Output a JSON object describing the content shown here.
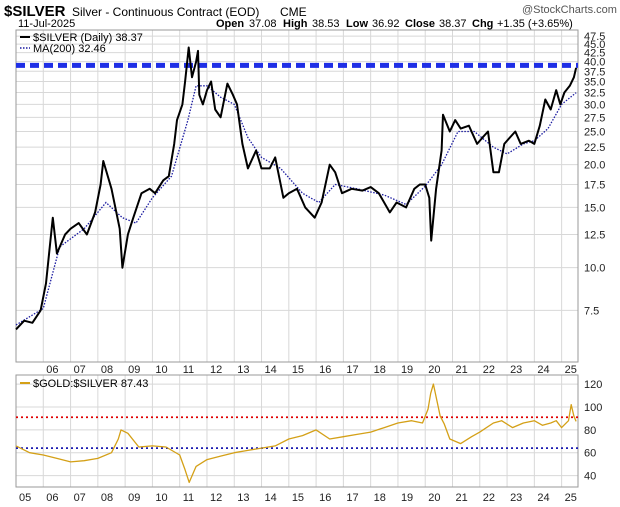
{
  "header": {
    "symbol": "$SILVER",
    "description": "Silver - Continuous Contract (EOD)",
    "exchange": "CME",
    "date": "11-Jul-2025",
    "open_label": "Open",
    "open": "37.08",
    "high_label": "High",
    "high": "38.53",
    "low_label": "Low",
    "low": "36.92",
    "close_label": "Close",
    "close": "38.37",
    "chg_label": "Chg",
    "chg": "+1.35 (+3.65%)",
    "watermark": "@StockCharts.com"
  },
  "colors": {
    "price": "#000000",
    "ma": "#1a1aa0",
    "resistance": "#1f2fe6",
    "ratio": "#d4a017",
    "upper": "#e00000",
    "lower": "#1a1ab0",
    "grid": "#d8d8d8",
    "panel_border": "#9a9a9a"
  },
  "chart_data": [
    {
      "type": "line",
      "title": "$SILVER Silver - Continuous Contract (EOD) CME",
      "legend": [
        {
          "label": "$SILVER (Daily) 38.37",
          "style": "solid"
        },
        {
          "label": "MA(200) 32.46",
          "style": "dotted"
        }
      ],
      "x_ticks": [
        "06",
        "07",
        "08",
        "09",
        "10",
        "11",
        "12",
        "13",
        "14",
        "15",
        "16",
        "17",
        "18",
        "19",
        "20",
        "21",
        "22",
        "23",
        "24",
        "25"
      ],
      "y_ticks": [
        "7.5",
        "10.0",
        "12.5",
        "15.0",
        "17.5",
        "20.0",
        "22.5",
        "25.0",
        "27.5",
        "30.0",
        "32.5",
        "35.0",
        "37.5",
        "40.0",
        "42.5",
        "45.0",
        "47.5"
      ],
      "ylim": [
        5.3,
        49.5
      ],
      "xlim": [
        2005.0,
        2025.6
      ],
      "y_scale": "log",
      "grid": true,
      "horizontal_line": 39.0,
      "series": [
        {
          "name": "$SILVER (Daily)",
          "x": [
            2005.0,
            2005.3,
            2005.6,
            2005.9,
            2006.1,
            2006.35,
            2006.5,
            2006.8,
            2007.0,
            2007.3,
            2007.6,
            2007.9,
            2008.1,
            2008.2,
            2008.5,
            2008.8,
            2008.9,
            2009.1,
            2009.3,
            2009.6,
            2009.9,
            2010.1,
            2010.4,
            2010.6,
            2010.8,
            2010.9,
            2011.1,
            2011.2,
            2011.33,
            2011.45,
            2011.6,
            2011.67,
            2011.72,
            2011.85,
            2012.0,
            2012.15,
            2012.3,
            2012.5,
            2012.75,
            2012.95,
            2013.1,
            2013.3,
            2013.5,
            2013.8,
            2014.0,
            2014.3,
            2014.5,
            2014.8,
            2015.0,
            2015.3,
            2015.6,
            2015.95,
            2016.2,
            2016.5,
            2016.7,
            2016.95,
            2017.3,
            2017.7,
            2018.0,
            2018.3,
            2018.7,
            2018.95,
            2019.3,
            2019.6,
            2019.8,
            2020.0,
            2020.15,
            2020.22,
            2020.4,
            2020.6,
            2020.65,
            2020.9,
            2021.1,
            2021.3,
            2021.6,
            2021.9,
            2022.1,
            2022.3,
            2022.5,
            2022.7,
            2022.9,
            2023.1,
            2023.3,
            2023.5,
            2023.8,
            2024.0,
            2024.2,
            2024.4,
            2024.6,
            2024.8,
            2024.95,
            2025.1,
            2025.3,
            2025.45,
            2025.53
          ],
          "values": [
            6.6,
            7.0,
            6.9,
            7.5,
            9.0,
            14.0,
            11.0,
            12.5,
            13.0,
            13.5,
            12.5,
            14.5,
            17.5,
            20.5,
            17.0,
            13.0,
            10.0,
            12.5,
            14.0,
            16.5,
            17.0,
            16.5,
            18.0,
            18.5,
            23.0,
            27.0,
            30.0,
            35.0,
            44.0,
            36.0,
            40.0,
            43.0,
            32.0,
            30.0,
            33.0,
            35.0,
            29.0,
            27.5,
            34.5,
            32.0,
            30.0,
            23.0,
            19.5,
            22.0,
            19.5,
            19.5,
            21.0,
            16.0,
            16.5,
            17.0,
            15.0,
            14.0,
            15.5,
            20.0,
            19.0,
            16.5,
            17.0,
            16.8,
            17.2,
            16.5,
            14.5,
            15.5,
            15.0,
            17.0,
            17.5,
            17.5,
            16.0,
            12.0,
            17.0,
            22.0,
            28.0,
            25.0,
            27.0,
            25.5,
            26.0,
            23.0,
            24.0,
            25.0,
            19.0,
            19.0,
            23.0,
            24.0,
            25.0,
            23.0,
            23.5,
            23.0,
            26.0,
            31.0,
            29.0,
            33.0,
            30.0,
            32.5,
            34.0,
            36.0,
            38.37
          ]
        },
        {
          "name": "MA(200)",
          "x": [
            2005.0,
            2006.0,
            2006.6,
            2007.5,
            2008.3,
            2008.9,
            2009.4,
            2010.0,
            2010.7,
            2011.3,
            2011.6,
            2012.0,
            2012.5,
            2013.0,
            2013.5,
            2014.0,
            2014.7,
            2015.5,
            2016.1,
            2016.7,
            2017.5,
            2018.5,
            2019.3,
            2020.0,
            2020.6,
            2021.2,
            2021.8,
            2022.5,
            2023.0,
            2023.6,
            2024.0,
            2024.5,
            2025.0,
            2025.53
          ],
          "values": [
            6.8,
            7.6,
            11.5,
            13.0,
            15.5,
            14.0,
            13.5,
            16.0,
            18.5,
            27.0,
            34.0,
            34.0,
            31.5,
            30.0,
            24.0,
            21.0,
            19.5,
            16.5,
            15.5,
            17.5,
            17.0,
            16.3,
            15.3,
            17.3,
            20.0,
            25.0,
            25.0,
            22.5,
            21.5,
            23.0,
            23.5,
            25.5,
            30.0,
            32.46
          ]
        }
      ]
    },
    {
      "type": "line",
      "title": "$GOLD:$SILVER",
      "legend": [
        {
          "label": "$GOLD:$SILVER 87.43",
          "style": "solid"
        }
      ],
      "x_ticks": [
        "05",
        "06",
        "07",
        "08",
        "09",
        "10",
        "11",
        "12",
        "13",
        "14",
        "15",
        "16",
        "17",
        "18",
        "19",
        "20",
        "21",
        "22",
        "23",
        "24",
        "25"
      ],
      "y_ticks": [
        "40",
        "60",
        "80",
        "100",
        "120"
      ],
      "ylim": [
        30,
        128
      ],
      "xlim": [
        2005.0,
        2025.6
      ],
      "grid": true,
      "horizontal_lines": [
        91.0,
        64.0
      ],
      "series": [
        {
          "name": "$GOLD:$SILVER",
          "x": [
            2005.0,
            2005.5,
            2006.0,
            2006.5,
            2007.0,
            2007.5,
            2008.0,
            2008.5,
            2008.75,
            2008.85,
            2009.1,
            2009.5,
            2010.0,
            2010.5,
            2011.0,
            2011.2,
            2011.35,
            2011.6,
            2012.0,
            2012.5,
            2013.0,
            2013.5,
            2014.0,
            2014.5,
            2015.0,
            2015.5,
            2016.0,
            2016.5,
            2017.0,
            2017.5,
            2018.0,
            2018.5,
            2019.0,
            2019.5,
            2019.9,
            2020.1,
            2020.2,
            2020.3,
            2020.55,
            2020.7,
            2020.9,
            2021.3,
            2021.7,
            2022.0,
            2022.5,
            2022.8,
            2023.2,
            2023.6,
            2024.0,
            2024.3,
            2024.6,
            2024.8,
            2025.0,
            2025.25,
            2025.35,
            2025.45,
            2025.53
          ],
          "values": [
            66,
            60,
            58,
            55,
            52,
            53,
            55,
            60,
            72,
            80,
            77,
            65,
            66,
            65,
            58,
            45,
            34,
            48,
            54,
            57,
            60,
            62,
            64,
            66,
            72,
            75,
            80,
            72,
            74,
            76,
            78,
            82,
            86,
            88,
            86,
            98,
            112,
            120,
            92,
            85,
            72,
            68,
            74,
            78,
            86,
            88,
            82,
            86,
            88,
            84,
            86,
            88,
            82,
            88,
            102,
            92,
            87.43
          ]
        }
      ]
    }
  ]
}
